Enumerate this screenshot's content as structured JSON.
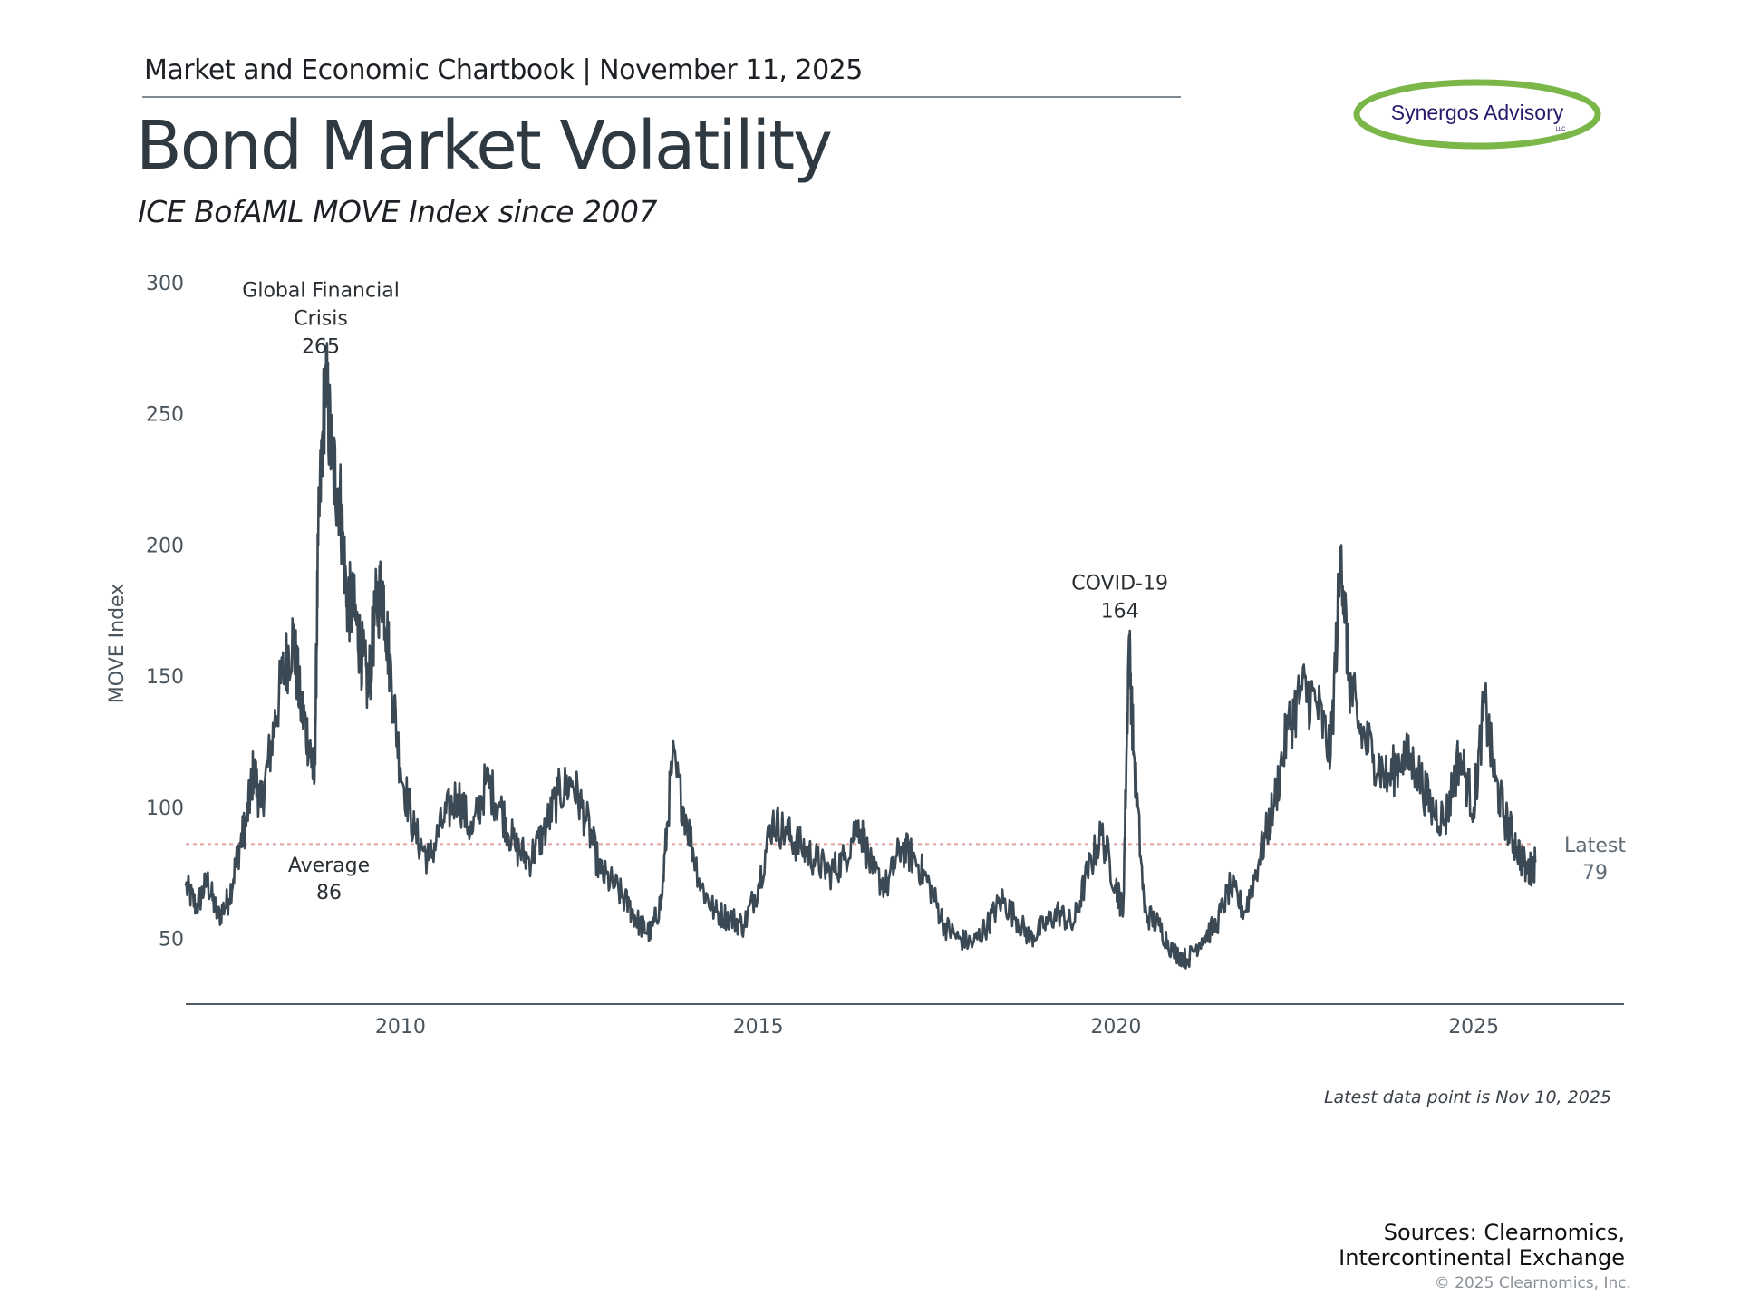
{
  "header": {
    "chartbook": "Market and Economic Chartbook | November 11, 2025",
    "title": "Bond Market Volatility",
    "subtitle": "ICE BofAML MOVE Index since 2007"
  },
  "logo": {
    "name": "Synergos Advisory",
    "suffix": "LLC",
    "colors": {
      "ring": "#7ab648",
      "text": "#2b1a6b"
    }
  },
  "footer": {
    "latest_note": "Latest data point is Nov 10, 2025",
    "sources_line1": "Sources: Clearnomics,",
    "sources_line2": "Intercontinental Exchange",
    "copyright": "© 2025 Clearnomics, Inc."
  },
  "chart_data": {
    "type": "line",
    "ylabel": "MOVE Index",
    "xlabel": "",
    "xlim": [
      2007.0,
      2027.1
    ],
    "ylim": [
      25,
      300
    ],
    "yticks": [
      50,
      100,
      150,
      200,
      250,
      300
    ],
    "xticks": [
      2010,
      2015,
      2020,
      2025
    ],
    "grid": false,
    "line_color": "#3b4954",
    "average_color": "#e3a3a3",
    "series": [
      {
        "x": [
          2007.0,
          2007.15,
          2007.3,
          2007.45,
          2007.6,
          2007.75,
          2007.85,
          2007.95,
          2008.05,
          2008.2,
          2008.35,
          2008.5,
          2008.6,
          2008.72,
          2008.8,
          2008.85,
          2008.95,
          2009.05,
          2009.15,
          2009.25,
          2009.35,
          2009.45,
          2009.55,
          2009.65,
          2009.75,
          2009.85,
          2010.0,
          2010.2,
          2010.4,
          2010.6,
          2010.8,
          2011.0,
          2011.2,
          2011.4,
          2011.6,
          2011.8,
          2012.0,
          2012.2,
          2012.4,
          2012.6,
          2012.8,
          2013.0,
          2013.2,
          2013.35,
          2013.5,
          2013.65,
          2013.8,
          2014.0,
          2014.2,
          2014.4,
          2014.6,
          2014.8,
          2015.0,
          2015.2,
          2015.4,
          2015.6,
          2015.8,
          2016.0,
          2016.2,
          2016.4,
          2016.6,
          2016.8,
          2017.0,
          2017.2,
          2017.4,
          2017.6,
          2017.8,
          2018.0,
          2018.2,
          2018.4,
          2018.6,
          2018.8,
          2019.0,
          2019.2,
          2019.4,
          2019.6,
          2019.8,
          2020.0,
          2020.1,
          2020.18,
          2020.25,
          2020.4,
          2020.6,
          2020.8,
          2021.0,
          2021.2,
          2021.4,
          2021.6,
          2021.8,
          2022.0,
          2022.2,
          2022.4,
          2022.6,
          2022.8,
          2023.0,
          2023.15,
          2023.25,
          2023.4,
          2023.6,
          2023.8,
          2024.0,
          2024.2,
          2024.4,
          2024.6,
          2024.8,
          2025.0,
          2025.15,
          2025.3,
          2025.45,
          2025.6,
          2025.75,
          2025.86
        ],
        "y": [
          70,
          62,
          72,
          58,
          65,
          85,
          95,
          115,
          100,
          125,
          150,
          165,
          140,
          125,
          110,
          200,
          265,
          230,
          220,
          180,
          175,
          160,
          145,
          175,
          185,
          155,
          115,
          90,
          80,
          95,
          105,
          90,
          110,
          100,
          85,
          80,
          90,
          105,
          110,
          95,
          75,
          70,
          62,
          55,
          52,
          65,
          118,
          95,
          70,
          60,
          58,
          55,
          70,
          95,
          90,
          85,
          80,
          75,
          80,
          95,
          75,
          70,
          85,
          80,
          70,
          55,
          50,
          48,
          55,
          65,
          58,
          50,
          55,
          60,
          55,
          75,
          90,
          70,
          60,
          164,
          120,
          60,
          55,
          45,
          42,
          50,
          55,
          70,
          60,
          80,
          100,
          130,
          145,
          140,
          120,
          200,
          150,
          130,
          120,
          110,
          120,
          115,
          100,
          95,
          120,
          100,
          140,
          110,
          95,
          85,
          75,
          79
        ]
      }
    ],
    "average": {
      "value": 86,
      "label": "Average",
      "value_label": "86"
    },
    "annotations": [
      {
        "lines": [
          "Global Financial",
          "Crisis",
          "265"
        ],
        "x": 2008.85,
        "y": 265
      },
      {
        "lines": [
          "COVID-19",
          "164"
        ],
        "x": 2020.18,
        "y": 164
      }
    ],
    "latest": {
      "label": "Latest",
      "value": "79",
      "x": 2025.86,
      "y": 79
    }
  }
}
